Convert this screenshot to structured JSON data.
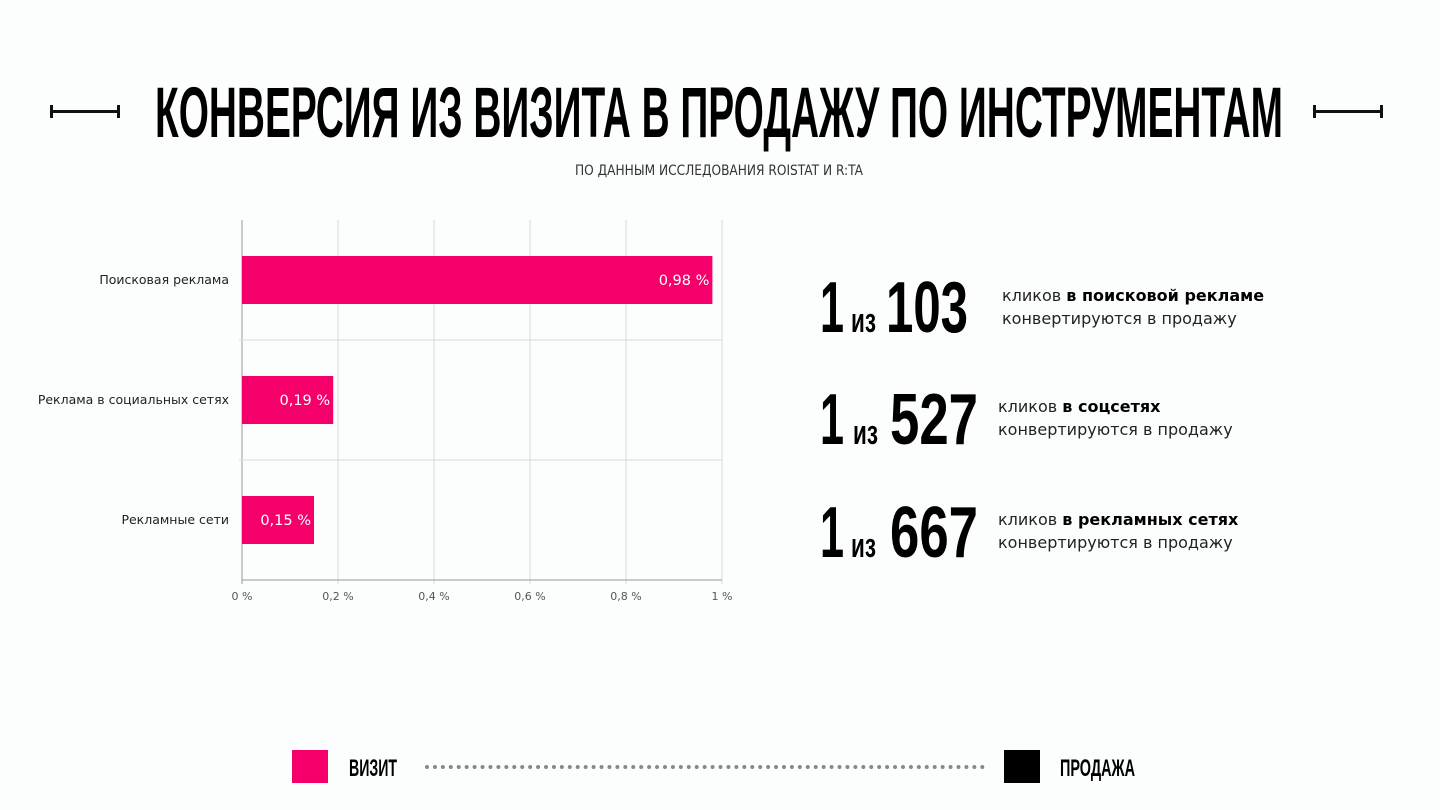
{
  "title": "КОНВЕРСИЯ ИЗ ВИЗИТА В ПРОДАЖУ ПО ИНСТРУМЕНТАМ",
  "subtitle": "ПО ДАННЫМ ИССЛЕДОВАНИЯ ROISTAT И R:TA",
  "chart_data": {
    "type": "bar",
    "orientation": "horizontal",
    "categories": [
      "Поисковая реклама",
      "Реклама в социальных сетях",
      "Рекламные сети"
    ],
    "values": [
      0.98,
      0.19,
      0.15
    ],
    "data_labels": [
      "0,98 %",
      "0,19 %",
      "0,15 %"
    ],
    "xlim": [
      0,
      1
    ],
    "xticks": [
      0,
      0.2,
      0.4,
      0.6,
      0.8,
      1
    ],
    "xtick_labels": [
      "0 %",
      "0,2 %",
      "0,4 %",
      "0,6 %",
      "0,8 %",
      "1 %"
    ],
    "grid": true,
    "bar_color": "#f5006b"
  },
  "stats": [
    {
      "one": "1",
      "iz": "из",
      "number": "103",
      "line1_prefix": "кликов ",
      "line1_bold": "в поисковой рекламе",
      "line2": "конвертируются в продажу"
    },
    {
      "one": "1",
      "iz": "из",
      "number": "527",
      "line1_prefix": "кликов ",
      "line1_bold": "в соцсетях",
      "line2": "конвертируются в продажу"
    },
    {
      "one": "1",
      "iz": "из",
      "number": "667",
      "line1_prefix": "кликов ",
      "line1_bold": "в рекламных сетях",
      "line2": "конвертируются в продажу"
    }
  ],
  "legend": {
    "visit_label": "ВИЗИТ",
    "visit_color": "#f5006b",
    "sale_label": "ПРОДАЖА",
    "sale_color": "#000000"
  }
}
